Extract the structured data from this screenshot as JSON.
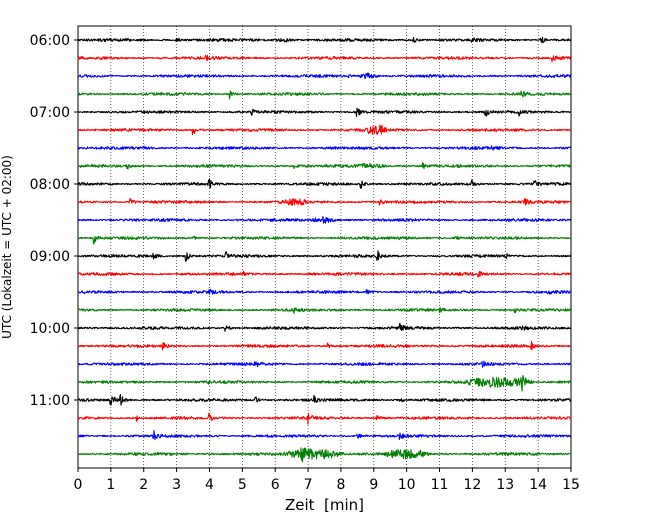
{
  "chart_data": {
    "type": "line",
    "subtype": "helicorder-seismogram",
    "title": "",
    "xlabel": "Zeit  [min]",
    "ylabel": "UTC (Lokalzeit = UTC + 02:00)",
    "xlim": [
      0,
      15
    ],
    "x_ticks": [
      0,
      1,
      2,
      3,
      4,
      5,
      6,
      7,
      8,
      9,
      10,
      11,
      12,
      13,
      14,
      15
    ],
    "y_ticks": [
      "06:00",
      "07:00",
      "08:00",
      "09:00",
      "10:00",
      "11:00"
    ],
    "grid": "vertical dotted lines at every minute",
    "legend": "none",
    "trace_colors_cycle": [
      "#000000",
      "#ff0000",
      "#0000ff",
      "#008000"
    ],
    "trace_interval_minutes": 15,
    "traces": [
      {
        "start": "06:00",
        "color": "#000000",
        "events": [
          [
            3.0,
            0.5
          ],
          [
            10.2,
            0.35
          ],
          [
            12.0,
            0.3
          ],
          [
            14.1,
            0.4
          ]
        ],
        "bursts": [
          [
            6.0,
            0.6,
            0.15
          ]
        ]
      },
      {
        "start": "06:15",
        "color": "#ff0000",
        "events": [
          [
            3.9,
            0.3
          ],
          [
            14.4,
            0.5
          ]
        ],
        "bursts": []
      },
      {
        "start": "06:30",
        "color": "#0000ff",
        "events": [
          [
            8.2,
            0.25
          ],
          [
            9.0,
            0.3
          ]
        ],
        "bursts": [
          [
            8.6,
            0.4,
            0.3
          ]
        ]
      },
      {
        "start": "06:45",
        "color": "#008000",
        "events": [
          [
            4.6,
            0.6
          ],
          [
            13.5,
            0.4
          ]
        ],
        "bursts": []
      },
      {
        "start": "07:00",
        "color": "#000000",
        "events": [
          [
            5.3,
            0.3
          ],
          [
            8.5,
            0.6
          ],
          [
            12.4,
            0.6
          ],
          [
            13.4,
            0.4
          ]
        ],
        "bursts": []
      },
      {
        "start": "07:15",
        "color": "#ff0000",
        "events": [
          [
            3.5,
            0.6
          ],
          [
            9.2,
            0.3
          ]
        ],
        "bursts": [
          [
            8.8,
            0.5,
            0.4
          ]
        ]
      },
      {
        "start": "07:30",
        "color": "#0000ff",
        "events": [
          [
            2.0,
            0.2
          ],
          [
            12.6,
            0.25
          ]
        ],
        "bursts": []
      },
      {
        "start": "07:45",
        "color": "#008000",
        "events": [
          [
            1.5,
            0.3
          ],
          [
            6.6,
            0.25
          ],
          [
            10.5,
            0.3
          ]
        ],
        "bursts": [
          [
            8.5,
            0.8,
            0.2
          ]
        ]
      },
      {
        "start": "08:00",
        "color": "#000000",
        "events": [
          [
            4.0,
            0.5
          ],
          [
            8.6,
            0.6
          ],
          [
            12.0,
            0.5
          ],
          [
            13.9,
            0.4
          ]
        ],
        "bursts": []
      },
      {
        "start": "08:15",
        "color": "#ff0000",
        "events": [
          [
            1.6,
            0.4
          ],
          [
            6.2,
            0.5
          ],
          [
            9.2,
            0.35
          ],
          [
            13.6,
            0.45
          ]
        ],
        "bursts": [
          [
            6.4,
            0.5,
            0.25
          ]
        ]
      },
      {
        "start": "08:30",
        "color": "#0000ff",
        "events": [
          [
            7.4,
            0.3
          ]
        ],
        "bursts": [
          [
            7.2,
            0.6,
            0.25
          ]
        ]
      },
      {
        "start": "08:45",
        "color": "#008000",
        "events": [
          [
            0.5,
            0.7
          ],
          [
            3.5,
            0.3
          ],
          [
            11.5,
            0.25
          ]
        ],
        "bursts": []
      },
      {
        "start": "09:00",
        "color": "#000000",
        "events": [
          [
            2.3,
            0.4
          ],
          [
            3.3,
            0.6
          ],
          [
            4.5,
            0.4
          ],
          [
            9.1,
            0.7
          ],
          [
            13.0,
            0.3
          ]
        ],
        "bursts": []
      },
      {
        "start": "09:15",
        "color": "#ff0000",
        "events": [
          [
            5.0,
            0.3
          ],
          [
            12.2,
            0.25
          ]
        ],
        "bursts": []
      },
      {
        "start": "09:30",
        "color": "#0000ff",
        "events": [
          [
            4.0,
            0.4
          ],
          [
            8.8,
            0.3
          ],
          [
            14.3,
            0.4
          ]
        ],
        "bursts": []
      },
      {
        "start": "09:45",
        "color": "#008000",
        "events": [
          [
            6.6,
            0.3
          ],
          [
            11.0,
            0.25
          ],
          [
            13.3,
            0.3
          ]
        ],
        "bursts": []
      },
      {
        "start": "10:00",
        "color": "#000000",
        "events": [
          [
            4.5,
            0.4
          ],
          [
            9.8,
            0.5
          ],
          [
            13.5,
            0.3
          ]
        ],
        "bursts": []
      },
      {
        "start": "10:15",
        "color": "#ff0000",
        "events": [
          [
            2.6,
            0.5
          ],
          [
            7.6,
            0.3
          ],
          [
            13.8,
            0.6
          ]
        ],
        "bursts": []
      },
      {
        "start": "10:30",
        "color": "#0000ff",
        "events": [
          [
            5.4,
            0.3
          ],
          [
            12.3,
            0.4
          ]
        ],
        "bursts": []
      },
      {
        "start": "10:45",
        "color": "#008000",
        "events": [
          [
            4.0,
            0.3
          ],
          [
            13.5,
            0.8
          ]
        ],
        "bursts": [
          [
            12.0,
            1.6,
            0.55
          ]
        ]
      },
      {
        "start": "11:00",
        "color": "#000000",
        "events": [
          [
            1.0,
            0.9
          ],
          [
            1.3,
            0.6
          ],
          [
            5.4,
            0.4
          ],
          [
            7.2,
            0.5
          ],
          [
            9.8,
            0.3
          ]
        ],
        "bursts": []
      },
      {
        "start": "11:15",
        "color": "#ff0000",
        "events": [
          [
            1.8,
            0.3
          ],
          [
            4.0,
            0.5
          ],
          [
            7.0,
            0.6
          ],
          [
            9.1,
            0.35
          ]
        ],
        "bursts": []
      },
      {
        "start": "11:30",
        "color": "#0000ff",
        "events": [
          [
            2.3,
            0.6
          ],
          [
            8.5,
            0.4
          ],
          [
            9.8,
            0.3
          ]
        ],
        "bursts": []
      },
      {
        "start": "11:45",
        "color": "#008000",
        "events": [
          [
            6.8,
            0.6
          ]
        ],
        "bursts": [
          [
            6.5,
            1.4,
            0.55
          ],
          [
            9.5,
            1.0,
            0.5
          ]
        ]
      }
    ]
  }
}
